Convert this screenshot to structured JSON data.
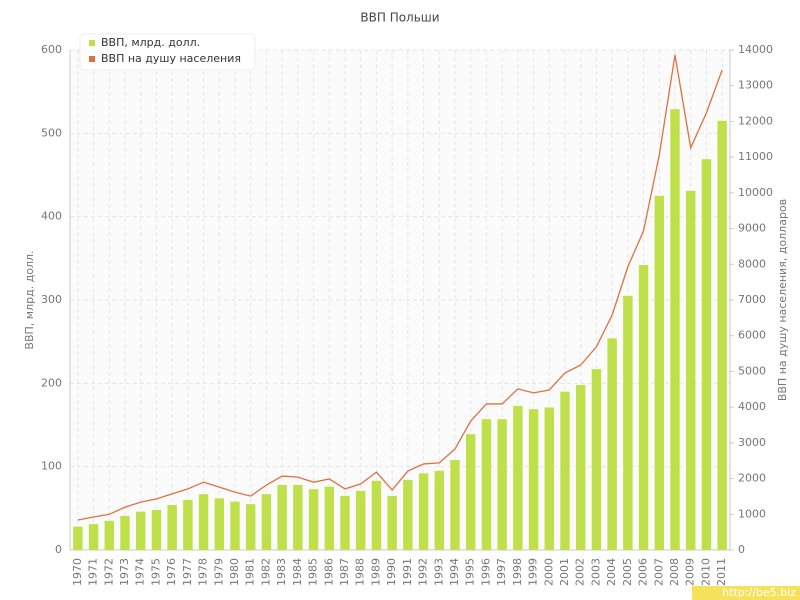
{
  "chart_data": {
    "type": "bar-line",
    "title": "ВВП Польши",
    "y_label": "ВВП, млрд. долл.",
    "y2_label": "ВВП на душу населения, долларов",
    "watermark": "http://be5.biz",
    "categories": [
      "1970",
      "1971",
      "1972",
      "1973",
      "1974",
      "1975",
      "1976",
      "1977",
      "1978",
      "1979",
      "1980",
      "1981",
      "1982",
      "1983",
      "1984",
      "1985",
      "1986",
      "1987",
      "1988",
      "1989",
      "1990",
      "1991",
      "1992",
      "1993",
      "1994",
      "1995",
      "1996",
      "1997",
      "1998",
      "1999",
      "2000",
      "2001",
      "2002",
      "2003",
      "2004",
      "2005",
      "2006",
      "2007",
      "2008",
      "2009",
      "2010",
      "2011"
    ],
    "series": [
      {
        "name": "ВВП, млрд. долл.",
        "color": "#bfe04a",
        "kind": "bar",
        "values": [
          28,
          31,
          35,
          41,
          46,
          48,
          54,
          60,
          67,
          62,
          58,
          55,
          67,
          78,
          78,
          73,
          76,
          65,
          71,
          83,
          65,
          84,
          92,
          95,
          108,
          139,
          157,
          157,
          173,
          169,
          171,
          190,
          198,
          217,
          254,
          305,
          342,
          425,
          529,
          431,
          469,
          515
        ]
      },
      {
        "name": "ВВП на душу населения",
        "color": "#e07040",
        "kind": "line",
        "axis": "y2",
        "values": [
          840,
          925,
          1000,
          1200,
          1340,
          1430,
          1570,
          1710,
          1900,
          1760,
          1620,
          1510,
          1820,
          2070,
          2040,
          1900,
          1990,
          1710,
          1850,
          2180,
          1680,
          2210,
          2410,
          2440,
          2830,
          3610,
          4090,
          4090,
          4510,
          4400,
          4480,
          4960,
          5180,
          5690,
          6580,
          7930,
          8940,
          11060,
          13860,
          11260,
          12240,
          13440
        ]
      }
    ],
    "ylim": [
      0,
      600
    ],
    "yticks": [
      0,
      100,
      200,
      300,
      400,
      500,
      600
    ],
    "y2lim": [
      0,
      14000
    ],
    "y2ticks": [
      0,
      1000,
      2000,
      3000,
      4000,
      5000,
      6000,
      7000,
      8000,
      9000,
      10000,
      11000,
      12000,
      13000,
      14000
    ],
    "grid": true,
    "legend": "top-left"
  }
}
